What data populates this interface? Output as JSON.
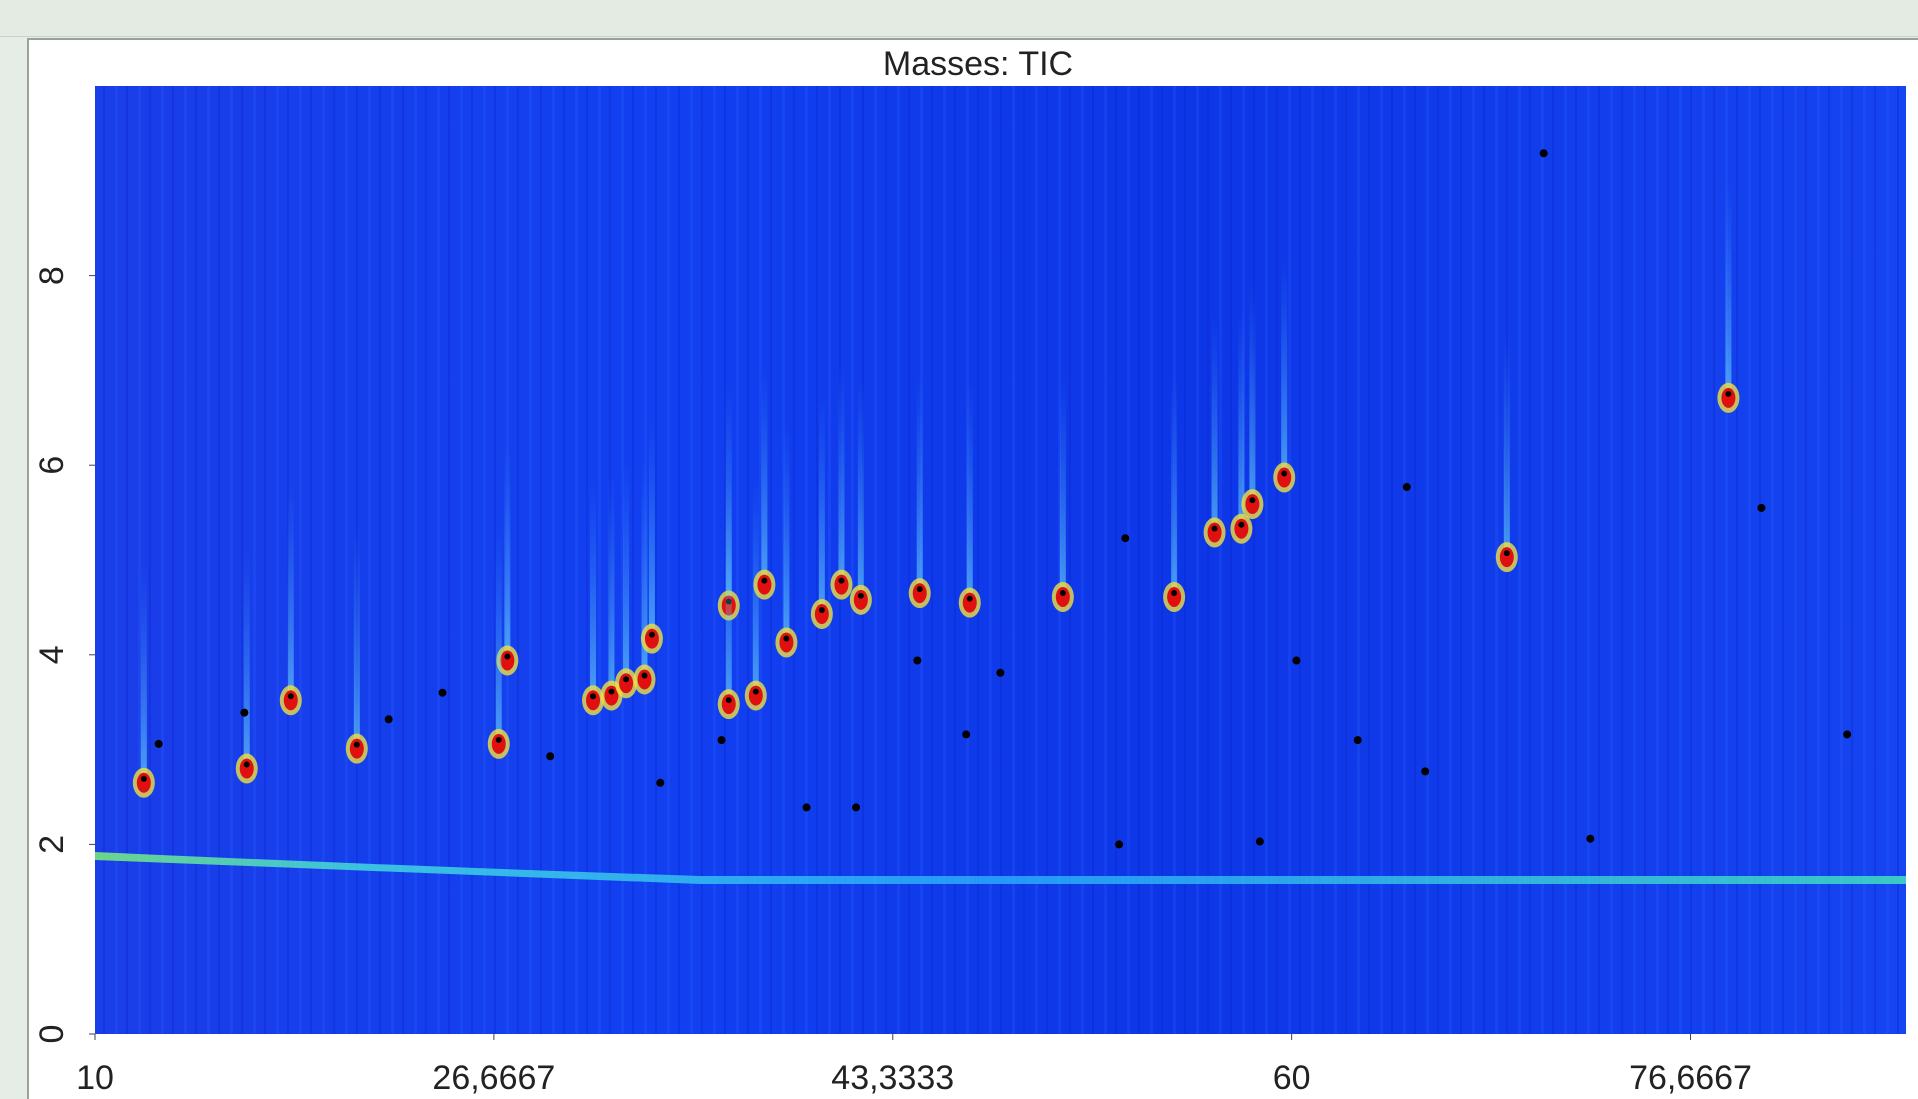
{
  "chart_data": {
    "type": "scatter",
    "title": "Masses: TIC",
    "xlim": [
      10,
      85.67
    ],
    "ylim": [
      0,
      10
    ],
    "xticks": [
      10,
      {
        "value": 26.6667,
        "label": "26,6667"
      },
      {
        "value": 43.3333,
        "label": "43,3333"
      },
      60,
      {
        "value": 76.6667,
        "label": "76,6667"
      }
    ],
    "yticks": [
      0,
      2,
      4,
      6,
      8
    ],
    "series": [
      {
        "color": "#e01010",
        "x": [
          12.04,
          16.34,
          18.18,
          20.94,
          27.23,
          26.87,
          30.81,
          31.58,
          32.19,
          32.96,
          33.27,
          36.48,
          36.48,
          37.61,
          37.97,
          38.89,
          40.37,
          41.19,
          42.0,
          44.46,
          46.55,
          50.44,
          55.09,
          56.78,
          57.9,
          58.36,
          59.69,
          68.99,
          78.25
        ],
        "values": [
          2.65,
          2.8,
          3.52,
          3.01,
          3.94,
          3.06,
          3.52,
          3.57,
          3.7,
          3.74,
          4.17,
          4.52,
          3.48,
          3.57,
          4.74,
          4.13,
          4.43,
          4.74,
          4.58,
          4.65,
          4.55,
          4.61,
          4.61,
          5.29,
          5.33,
          5.59,
          5.87,
          5.03,
          6.71
        ]
      },
      {
        "color": "#000000",
        "x": [
          12.66,
          16.24,
          22.27,
          24.52,
          29.02,
          33.62,
          36.18,
          39.73,
          41.8,
          44.36,
          46.4,
          47.83,
          53.05,
          60.2,
          62.76,
          64.81,
          65.58,
          72.48,
          79.63,
          83.21,
          58.67,
          52.79,
          70.53
        ],
        "values": [
          3.06,
          3.39,
          3.32,
          3.6,
          2.93,
          2.65,
          3.1,
          2.39,
          2.39,
          3.94,
          3.16,
          3.81,
          5.23,
          3.94,
          3.1,
          5.77,
          2.77,
          2.06,
          5.55,
          3.16,
          2.03,
          2.0,
          9.29
        ]
      }
    ]
  }
}
